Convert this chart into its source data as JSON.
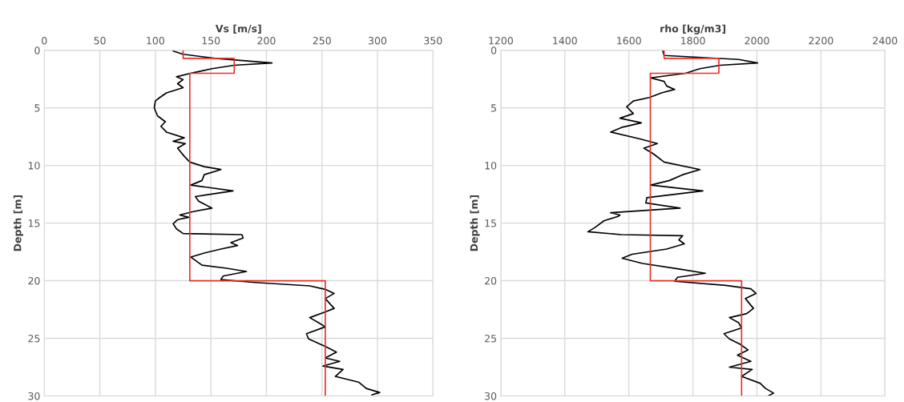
{
  "chart_data": [
    {
      "type": "line",
      "xlabel": "Vs [m/s]",
      "ylabel": "Depth [m]",
      "xlim": [
        0,
        350
      ],
      "xticks": [
        0,
        50,
        100,
        150,
        200,
        250,
        300,
        350
      ],
      "ylim": [
        30,
        0
      ],
      "yticks": [
        0,
        5,
        10,
        15,
        20,
        25,
        30
      ],
      "grid": true,
      "legend": false,
      "series": [
        {
          "color": "#000000",
          "x": [
            116,
            125,
            154,
            205,
            171,
            151,
            134,
            119,
            125,
            120,
            125,
            110,
            104,
            100,
            99,
            102,
            109,
            105,
            110,
            126,
            116,
            127,
            120,
            126,
            131,
            144,
            159,
            144,
            142,
            132,
            170,
            136,
            139,
            151,
            134,
            122,
            130,
            120,
            116,
            119,
            125,
            178,
            179,
            168,
            174,
            159,
            144,
            132,
            142,
            163,
            182,
            161,
            159,
            190,
            239,
            253,
            261,
            253,
            261,
            253,
            239,
            247,
            253,
            236,
            238,
            246,
            254,
            263,
            253,
            266,
            251,
            269,
            262,
            283,
            290,
            302,
            295
          ],
          "values": [
            0.07,
            0.35,
            0.7,
            1.1,
            1.3,
            1.6,
            1.95,
            2.3,
            2.55,
            2.9,
            3.25,
            3.7,
            4.1,
            4.4,
            5.0,
            5.7,
            6.2,
            6.6,
            7.1,
            7.6,
            7.9,
            8.1,
            8.5,
            9.2,
            9.7,
            10.1,
            10.35,
            10.8,
            11.3,
            11.7,
            12.2,
            12.7,
            13.1,
            13.7,
            14.0,
            14.3,
            14.5,
            14.7,
            15.05,
            15.5,
            15.9,
            16.0,
            16.3,
            16.7,
            16.95,
            17.25,
            17.6,
            17.95,
            18.65,
            18.9,
            19.2,
            19.6,
            19.9,
            20.15,
            20.45,
            20.75,
            21.1,
            21.55,
            22.4,
            22.7,
            23.2,
            23.65,
            24.0,
            24.6,
            25.05,
            25.4,
            25.75,
            26.2,
            26.7,
            27.0,
            27.4,
            27.7,
            28.3,
            28.8,
            29.35,
            29.7,
            29.9
          ]
        },
        {
          "color": "#e8302a",
          "x": [
            125,
            125,
            171,
            171,
            131,
            131,
            253,
            253
          ],
          "values": [
            0,
            0.7,
            0.7,
            2.0,
            2.0,
            20,
            20,
            30
          ]
        }
      ]
    },
    {
      "type": "line",
      "xlabel": "rho [kg/m3]",
      "ylabel": "Depth [m]",
      "xlim": [
        1200,
        2400
      ],
      "xticks": [
        1200,
        1400,
        1600,
        1800,
        2000,
        2200,
        2400
      ],
      "ylim": [
        30,
        0
      ],
      "yticks": [
        0,
        5,
        10,
        15,
        20,
        25,
        30
      ],
      "grid": true,
      "legend": false,
      "series": [
        {
          "color": "#000000",
          "x": [
            1706,
            1710,
            1943,
            2002,
            1885,
            1822,
            1777,
            1668,
            1710,
            1718,
            1743,
            1702,
            1664,
            1614,
            1593,
            1614,
            1572,
            1639,
            1577,
            1543,
            1635,
            1689,
            1647,
            1677,
            1710,
            1822,
            1768,
            1727,
            1668,
            1831,
            1656,
            1653,
            1760,
            1543,
            1572,
            1568,
            1522,
            1493,
            1472,
            1577,
            1768,
            1756,
            1773,
            1718,
            1610,
            1579,
            1643,
            1760,
            1839,
            1752,
            1743,
            1902,
            1981,
            1997,
            1964,
            1989,
            1968,
            1914,
            1943,
            1952,
            1897,
            1914,
            1947,
            1972,
            1939,
            1981,
            1914,
            1985,
            1952,
            2010,
            2027,
            2052,
            2035
          ],
          "values": [
            0.07,
            0.45,
            0.8,
            1.1,
            1.3,
            1.6,
            2.0,
            2.4,
            2.7,
            3.1,
            3.4,
            3.7,
            4.1,
            4.4,
            4.9,
            5.5,
            5.9,
            6.3,
            6.7,
            7.1,
            7.7,
            8.1,
            8.5,
            9.0,
            9.7,
            10.35,
            10.8,
            11.3,
            11.7,
            12.2,
            12.8,
            13.25,
            13.7,
            14.1,
            14.3,
            14.4,
            14.8,
            15.4,
            15.75,
            16.0,
            16.1,
            16.45,
            16.8,
            17.25,
            17.7,
            18.05,
            18.5,
            19.0,
            19.35,
            19.7,
            20.05,
            20.4,
            20.7,
            21.1,
            21.55,
            22.4,
            22.85,
            23.2,
            23.65,
            24.1,
            24.6,
            25.05,
            25.5,
            26.0,
            26.45,
            27.0,
            27.5,
            27.7,
            28.3,
            28.9,
            29.35,
            29.75,
            30.0
          ]
        },
        {
          "color": "#e8302a",
          "x": [
            1710,
            1710,
            1881,
            1881,
            1667,
            1667,
            1952,
            1952
          ],
          "values": [
            0,
            0.7,
            0.7,
            2.0,
            2.0,
            20,
            20,
            30
          ]
        }
      ]
    }
  ]
}
